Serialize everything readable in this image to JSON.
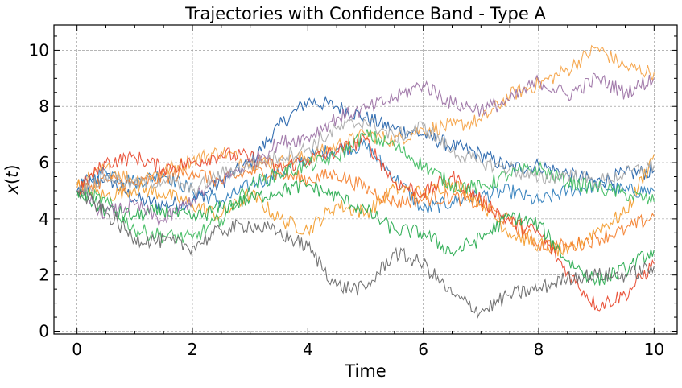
{
  "chart_data": {
    "type": "line",
    "title": "Trajectories with Confidence Band - Type A",
    "xlabel": "Time",
    "ylabel": "x(t)",
    "xlim": [
      -0.4,
      10.4
    ],
    "ylim": [
      -0.1,
      10.9
    ],
    "x_ticks": [
      0,
      2,
      4,
      6,
      8,
      10
    ],
    "y_ticks": [
      0,
      2,
      4,
      6,
      8,
      10
    ],
    "x_tick_labels": [
      "0",
      "2",
      "4",
      "6",
      "8",
      "10"
    ],
    "y_tick_labels": [
      "0",
      "2",
      "4",
      "6",
      "8",
      "10"
    ],
    "grid": true,
    "legend": "none",
    "x": [
      0,
      0.5,
      1,
      1.5,
      2,
      2.5,
      3,
      3.5,
      4,
      4.5,
      5,
      5.5,
      6,
      6.5,
      7,
      7.5,
      8,
      8.5,
      9,
      9.5,
      10
    ],
    "series": [
      {
        "color": "#1f5fa8",
        "values": [
          5.0,
          5.5,
          4.7,
          4.5,
          4.6,
          5.3,
          6.0,
          7.3,
          8.2,
          8.0,
          7.6,
          7.2,
          7.0,
          6.6,
          6.3,
          5.8,
          5.9,
          5.6,
          5.3,
          5.6,
          5.7
        ]
      },
      {
        "color": "#2b7bba",
        "values": [
          5.1,
          5.7,
          5.3,
          5.6,
          5.0,
          4.6,
          5.2,
          5.6,
          6.2,
          6.5,
          6.6,
          5.5,
          4.3,
          4.6,
          4.8,
          5.0,
          4.6,
          5.0,
          5.2,
          5.0,
          5.0
        ]
      },
      {
        "color": "#f5a142",
        "values": [
          5.1,
          5.8,
          5.4,
          5.7,
          6.1,
          6.4,
          6.0,
          6.0,
          6.2,
          6.6,
          7.0,
          6.8,
          7.2,
          7.3,
          7.5,
          8.4,
          8.8,
          9.3,
          10.1,
          9.4,
          9.2
        ]
      },
      {
        "color": "#f39a29",
        "values": [
          5.2,
          4.8,
          5.1,
          4.9,
          4.5,
          4.1,
          4.9,
          4.0,
          3.6,
          4.5,
          4.2,
          5.1,
          4.9,
          5.3,
          4.6,
          3.5,
          3.1,
          2.8,
          3.6,
          4.2,
          6.3
        ]
      },
      {
        "color": "#f47c28",
        "values": [
          5.0,
          5.4,
          5.2,
          5.5,
          5.7,
          5.3,
          5.7,
          5.6,
          5.4,
          5.6,
          5.1,
          4.6,
          4.7,
          4.8,
          4.5,
          3.9,
          3.1,
          3.0,
          3.3,
          3.6,
          4.1
        ]
      },
      {
        "color": "#e8462b",
        "values": [
          5.0,
          6.0,
          6.2,
          5.8,
          6.0,
          6.3,
          6.2,
          5.8,
          6.1,
          6.4,
          6.8,
          5.3,
          4.9,
          5.5,
          4.7,
          3.9,
          3.5,
          2.1,
          0.9,
          1.3,
          2.4
        ]
      },
      {
        "color": "#3bba5c",
        "values": [
          5.0,
          4.6,
          3.6,
          3.4,
          3.3,
          4.0,
          5.2,
          5.6,
          5.9,
          6.2,
          7.0,
          6.6,
          5.9,
          5.2,
          5.1,
          5.6,
          5.8,
          5.3,
          5.1,
          4.9,
          4.6
        ]
      },
      {
        "color": "#22a84a",
        "values": [
          5.0,
          4.3,
          4.1,
          4.3,
          4.0,
          4.4,
          4.7,
          5.0,
          5.2,
          4.8,
          4.3,
          3.6,
          3.5,
          2.8,
          3.3,
          4.1,
          3.8,
          2.5,
          1.8,
          2.2,
          2.9
        ]
      },
      {
        "color": "#9a6fa3",
        "values": [
          5.0,
          4.2,
          4.5,
          3.9,
          4.7,
          5.4,
          6.0,
          6.7,
          6.9,
          7.6,
          7.9,
          8.3,
          8.8,
          8.1,
          7.9,
          8.2,
          8.9,
          8.4,
          9.0,
          8.5,
          9.0
        ]
      },
      {
        "color": "#a9a9a9",
        "values": [
          5.0,
          5.5,
          5.2,
          5.4,
          5.0,
          5.6,
          5.9,
          6.2,
          6.5,
          7.2,
          7.5,
          6.9,
          7.3,
          6.4,
          6.0,
          5.8,
          5.4,
          5.6,
          5.3,
          5.6,
          5.9
        ]
      },
      {
        "color": "#666666",
        "values": [
          5.0,
          4.2,
          3.3,
          3.2,
          3.0,
          3.6,
          3.8,
          3.5,
          3.0,
          1.6,
          1.5,
          2.8,
          2.4,
          1.3,
          0.7,
          1.3,
          1.5,
          1.9,
          2.0,
          2.0,
          2.3
        ]
      }
    ]
  }
}
